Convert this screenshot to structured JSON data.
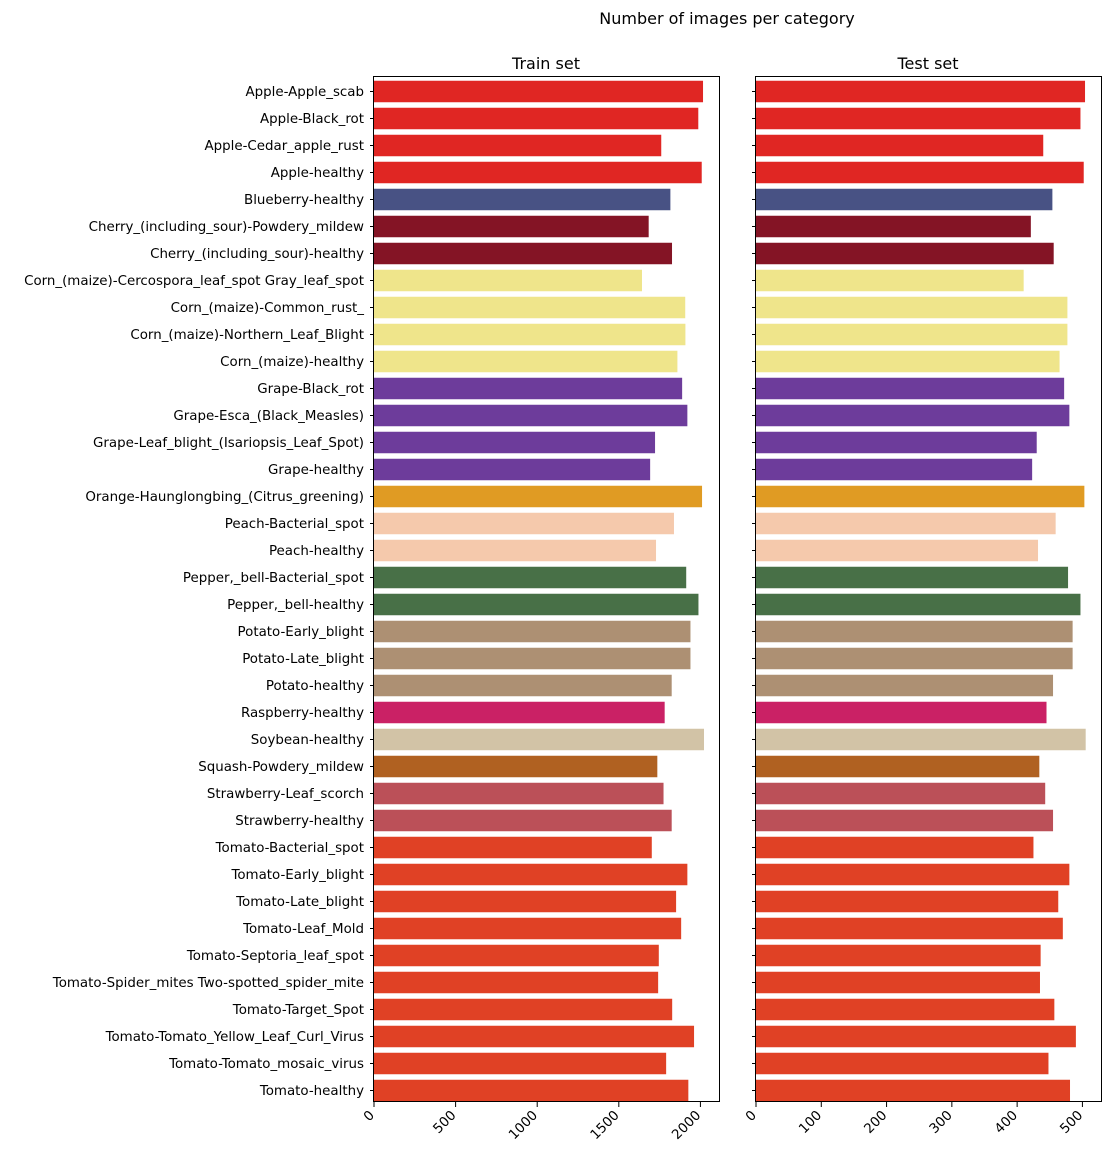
{
  "figure": {
    "title": "Number of images per category"
  },
  "chart_data": [
    {
      "type": "bar",
      "orientation": "horizontal",
      "title": "Train set",
      "xlabel": "",
      "ylabel": "",
      "xlim": [
        0,
        2120
      ],
      "xticks": [
        0,
        500,
        1000,
        1500,
        2000
      ],
      "grid": false,
      "categories": [
        "Apple-Apple_scab",
        "Apple-Black_rot",
        "Apple-Cedar_apple_rust",
        "Apple-healthy",
        "Blueberry-healthy",
        "Cherry_(including_sour)-Powdery_mildew",
        "Cherry_(including_sour)-healthy",
        "Corn_(maize)-Cercospora_leaf_spot Gray_leaf_spot",
        "Corn_(maize)-Common_rust_",
        "Corn_(maize)-Northern_Leaf_Blight",
        "Corn_(maize)-healthy",
        "Grape-Black_rot",
        "Grape-Esca_(Black_Measles)",
        "Grape-Leaf_blight_(Isariopsis_Leaf_Spot)",
        "Grape-healthy",
        "Orange-Haunglongbing_(Citrus_greening)",
        "Peach-Bacterial_spot",
        "Peach-healthy",
        "Pepper,_bell-Bacterial_spot",
        "Pepper,_bell-healthy",
        "Potato-Early_blight",
        "Potato-Late_blight",
        "Potato-healthy",
        "Raspberry-healthy",
        "Soybean-healthy",
        "Squash-Powdery_mildew",
        "Strawberry-Leaf_scorch",
        "Strawberry-healthy",
        "Tomato-Bacterial_spot",
        "Tomato-Early_blight",
        "Tomato-Late_blight",
        "Tomato-Leaf_Mold",
        "Tomato-Septoria_leaf_spot",
        "Tomato-Spider_mites Two-spotted_spider_mite",
        "Tomato-Target_Spot",
        "Tomato-Tomato_Yellow_Leaf_Curl_Virus",
        "Tomato-Tomato_mosaic_virus",
        "Tomato-healthy"
      ],
      "values": [
        2016,
        1987,
        1760,
        2008,
        1816,
        1683,
        1826,
        1642,
        1907,
        1908,
        1859,
        1888,
        1920,
        1722,
        1692,
        2010,
        1838,
        1728,
        1913,
        1988,
        1939,
        1939,
        1824,
        1781,
        2022,
        1736,
        1774,
        1824,
        1702,
        1920,
        1851,
        1882,
        1745,
        1741,
        1827,
        1961,
        1790,
        1926
      ],
      "colors": [
        "#e02623",
        "#e02623",
        "#e02623",
        "#e02623",
        "#485284",
        "#841425",
        "#841425",
        "#efe58b",
        "#efe58b",
        "#efe58b",
        "#efe58b",
        "#6d3c9b",
        "#6d3c9b",
        "#6d3c9b",
        "#6d3c9b",
        "#e09b23",
        "#f5c9ac",
        "#f5c9ac",
        "#487047",
        "#487047",
        "#ad9073",
        "#ad9073",
        "#ad9073",
        "#ca2165",
        "#d2c3a6",
        "#b06121",
        "#bb5058",
        "#bb5058",
        "#e04125",
        "#e04125",
        "#e04125",
        "#e04125",
        "#e04125",
        "#e04125",
        "#e04125",
        "#e04125",
        "#e04125",
        "#e04125"
      ]
    },
    {
      "type": "bar",
      "orientation": "horizontal",
      "title": "Test set",
      "xlabel": "",
      "ylabel": "",
      "xlim": [
        0,
        530
      ],
      "xticks": [
        0,
        100,
        200,
        300,
        400,
        500
      ],
      "grid": false,
      "values": [
        504,
        497,
        440,
        502,
        454,
        421,
        456,
        410,
        477,
        477,
        465,
        472,
        480,
        430,
        423,
        503,
        459,
        432,
        478,
        497,
        485,
        485,
        455,
        445,
        505,
        434,
        443,
        455,
        425,
        480,
        463,
        470,
        436,
        435,
        457,
        490,
        448,
        481
      ]
    }
  ]
}
